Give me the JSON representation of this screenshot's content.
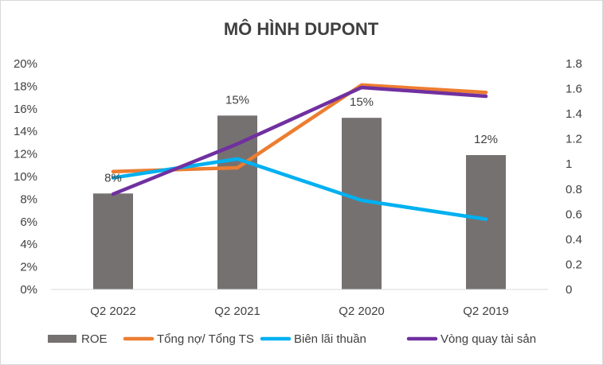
{
  "chart_data": {
    "type": "bar",
    "title": "MÔ HÌNH DUPONT",
    "categories": [
      "Q2 2022",
      "Q2 2021",
      "Q2 2020",
      "Q2 2019"
    ],
    "bar_series": {
      "name": "ROE",
      "values": [
        0.085,
        0.154,
        0.152,
        0.119
      ],
      "data_labels": [
        "8%",
        "15%",
        "15%",
        "12%"
      ],
      "color": "#767171",
      "axis": "left"
    },
    "line_series": [
      {
        "name": "Tổng nợ/ Tổng TS",
        "values": [
          0.94,
          0.97,
          1.63,
          1.57
        ],
        "color": "#ED7D31",
        "axis": "right"
      },
      {
        "name": "Biên lãi thuần",
        "values": [
          0.89,
          1.04,
          0.71,
          0.56
        ],
        "color": "#00B0F0",
        "axis": "right"
      },
      {
        "name": "Vòng quay tài sản",
        "values": [
          0.76,
          1.16,
          1.61,
          1.54
        ],
        "color": "#7030A0",
        "axis": "right"
      }
    ],
    "y_left": {
      "min": 0,
      "max": 0.2,
      "ticks": [
        0,
        0.02,
        0.04,
        0.06,
        0.08,
        0.1,
        0.12,
        0.14,
        0.16,
        0.18,
        0.2
      ],
      "tick_labels": [
        "0%",
        "2%",
        "4%",
        "6%",
        "8%",
        "10%",
        "12%",
        "14%",
        "16%",
        "18%",
        "20%"
      ]
    },
    "y_right": {
      "min": 0,
      "max": 1.8,
      "ticks": [
        0,
        0.2,
        0.4,
        0.6,
        0.8,
        1,
        1.2,
        1.4,
        1.6,
        1.8
      ],
      "tick_labels": [
        "0",
        "0.2",
        "0.4",
        "0.6",
        "0.8",
        "1",
        "1.2",
        "1.4",
        "1.6",
        "1.8"
      ]
    },
    "legend": {
      "position": "bottom",
      "entries": [
        "ROE",
        "Tổng nợ/ Tổng TS",
        "Biên lãi thuần",
        "Vòng quay tài sản"
      ]
    },
    "axis_color": "#D9D9D9"
  }
}
